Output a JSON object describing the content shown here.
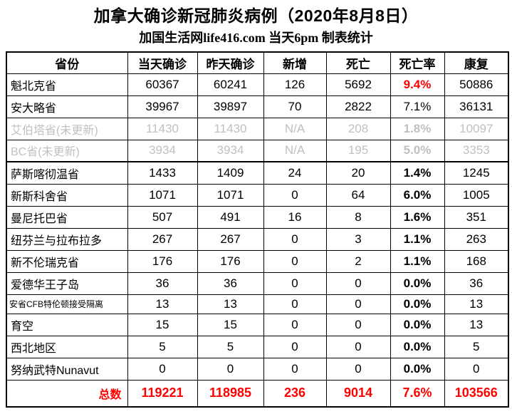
{
  "title": "加拿大确诊新冠肺炎病例（2020年8月8日）",
  "subtitle": "加国生活网life416.com 当天6pm 制表统计",
  "colors": {
    "accent_red": "#ff0000",
    "muted_gray": "#c0c0c0",
    "border_black": "#000000",
    "background": "#ffffff"
  },
  "table": {
    "headers": [
      "省份",
      "当天确诊",
      "昨天确诊",
      "新增",
      "死亡",
      "死亡率",
      "康复"
    ],
    "rows": [
      {
        "province": "魁北克省",
        "today": "60367",
        "yesterday": "60241",
        "new": "126",
        "deaths": "5692",
        "rate": "9.4%",
        "recovered": "50886",
        "muted": false,
        "small": false,
        "rate_style": "red-bold"
      },
      {
        "province": "安大略省",
        "today": "39967",
        "yesterday": "39897",
        "new": "70",
        "deaths": "2822",
        "rate": "7.1%",
        "recovered": "36131",
        "muted": false,
        "small": false,
        "rate_style": "regular"
      },
      {
        "province": "艾伯塔省(未更新)",
        "today": "11430",
        "yesterday": "11430",
        "new": "N/A",
        "deaths": "208",
        "rate": "1.8%",
        "recovered": "10097",
        "muted": true,
        "small": false,
        "rate_style": "bold"
      },
      {
        "province": "BC省(未更新)",
        "today": "3934",
        "yesterday": "3934",
        "new": "N/A",
        "deaths": "195",
        "rate": "5.0%",
        "recovered": "3353",
        "muted": true,
        "small": false,
        "rate_style": "bold"
      },
      {
        "province": "萨斯喀彻温省",
        "today": "1433",
        "yesterday": "1409",
        "new": "24",
        "deaths": "20",
        "rate": "1.4%",
        "recovered": "1245",
        "muted": false,
        "small": false,
        "rate_style": "bold"
      },
      {
        "province": "新斯科舍省",
        "today": "1071",
        "yesterday": "1071",
        "new": "0",
        "deaths": "64",
        "rate": "6.0%",
        "recovered": "1005",
        "muted": false,
        "small": false,
        "rate_style": "bold"
      },
      {
        "province": "曼尼托巴省",
        "today": "507",
        "yesterday": "491",
        "new": "16",
        "deaths": "8",
        "rate": "1.6%",
        "recovered": "351",
        "muted": false,
        "small": false,
        "rate_style": "bold"
      },
      {
        "province": "纽芬兰与拉布拉多",
        "today": "267",
        "yesterday": "267",
        "new": "0",
        "deaths": "3",
        "rate": "1.1%",
        "recovered": "263",
        "muted": false,
        "small": false,
        "rate_style": "bold"
      },
      {
        "province": "新不伦瑞克省",
        "today": "176",
        "yesterday": "176",
        "new": "0",
        "deaths": "2",
        "rate": "1.1%",
        "recovered": "168",
        "muted": false,
        "small": false,
        "rate_style": "bold"
      },
      {
        "province": "爱德华王子岛",
        "today": "36",
        "yesterday": "36",
        "new": "0",
        "deaths": "0",
        "rate": "0.0%",
        "recovered": "36",
        "muted": false,
        "small": false,
        "rate_style": "bold"
      },
      {
        "province": "安省CFB特伦顿接受隔离",
        "today": "13",
        "yesterday": "13",
        "new": "0",
        "deaths": "0",
        "rate": "0.0%",
        "recovered": "13",
        "muted": false,
        "small": true,
        "rate_style": "bold"
      },
      {
        "province": "育空",
        "today": "15",
        "yesterday": "15",
        "new": "0",
        "deaths": "0",
        "rate": "0.0%",
        "recovered": "13",
        "muted": false,
        "small": false,
        "rate_style": "bold"
      },
      {
        "province": "西北地区",
        "today": "5",
        "yesterday": "5",
        "new": "0",
        "deaths": "0",
        "rate": "0.0%",
        "recovered": "5",
        "muted": false,
        "small": false,
        "rate_style": "bold"
      },
      {
        "province": "努纳武特Nunavut",
        "today": "0",
        "yesterday": "0",
        "new": "0",
        "deaths": "0",
        "rate": "0.0%",
        "recovered": "0",
        "muted": false,
        "small": false,
        "rate_style": "bold"
      }
    ],
    "total": {
      "province": "总数",
      "today": "119221",
      "yesterday": "118985",
      "new": "236",
      "deaths": "9014",
      "rate": "7.6%",
      "recovered": "103566"
    }
  },
  "chart_data": {
    "type": "table",
    "title": "加拿大确诊新冠肺炎病例（2020年8月8日）",
    "subtitle": "加国生活网life416.com 当天6pm 制表统计",
    "columns": [
      "省份",
      "当天确诊",
      "昨天确诊",
      "新增",
      "死亡",
      "死亡率",
      "康复"
    ],
    "rows": [
      [
        "魁北克省",
        60367,
        60241,
        126,
        5692,
        "9.4%",
        50886
      ],
      [
        "安大略省",
        39967,
        39897,
        70,
        2822,
        "7.1%",
        36131
      ],
      [
        "艾伯塔省(未更新)",
        11430,
        11430,
        "N/A",
        208,
        "1.8%",
        10097
      ],
      [
        "BC省(未更新)",
        3934,
        3934,
        "N/A",
        195,
        "5.0%",
        3353
      ],
      [
        "萨斯喀彻温省",
        1433,
        1409,
        24,
        20,
        "1.4%",
        1245
      ],
      [
        "新斯科舍省",
        1071,
        1071,
        0,
        64,
        "6.0%",
        1005
      ],
      [
        "曼尼托巴省",
        507,
        491,
        16,
        8,
        "1.6%",
        351
      ],
      [
        "纽芬兰与拉布拉多",
        267,
        267,
        0,
        3,
        "1.1%",
        263
      ],
      [
        "新不伦瑞克省",
        176,
        176,
        0,
        2,
        "1.1%",
        168
      ],
      [
        "爱德华王子岛",
        36,
        36,
        0,
        0,
        "0.0%",
        36
      ],
      [
        "安省CFB特伦顿接受隔离",
        13,
        13,
        0,
        0,
        "0.0%",
        13
      ],
      [
        "育空",
        15,
        15,
        0,
        0,
        "0.0%",
        13
      ],
      [
        "西北地区",
        5,
        5,
        0,
        0,
        "0.0%",
        5
      ],
      [
        "努纳武特Nunavut",
        0,
        0,
        0,
        0,
        "0.0%",
        0
      ]
    ],
    "total_row": [
      "总数",
      119221,
      118985,
      236,
      9014,
      "7.6%",
      103566
    ],
    "grayed_out_rows": [
      "艾伯塔省(未更新)",
      "BC省(未更新)"
    ],
    "red_highlighted_values": [
      "9.4%",
      "总数行全部数值"
    ]
  }
}
